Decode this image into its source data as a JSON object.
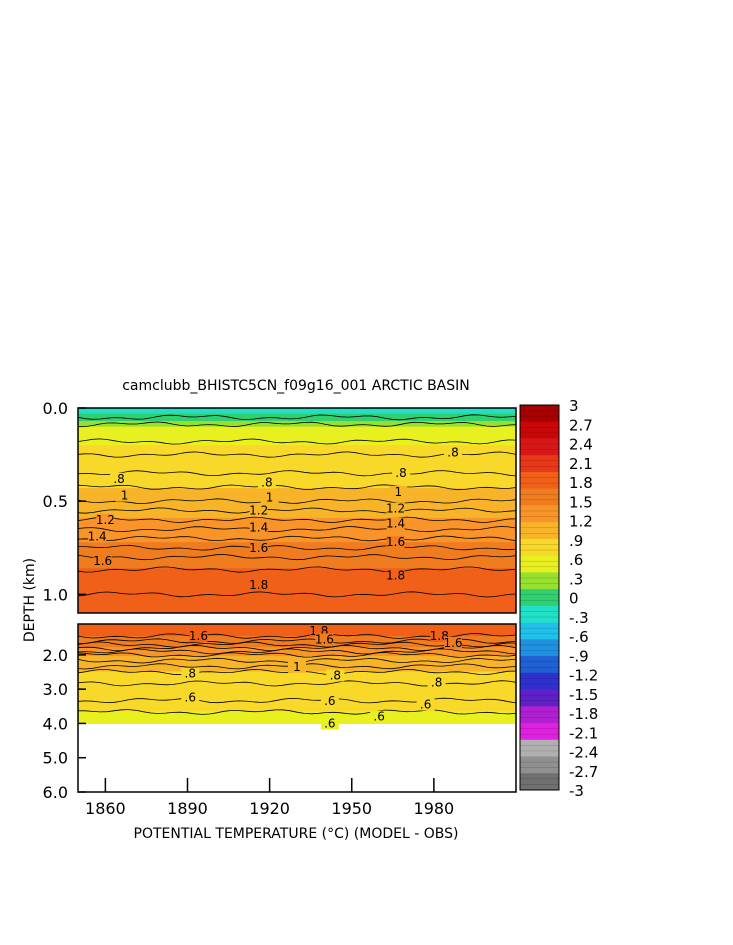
{
  "chart_data": {
    "type": "heatmap",
    "title": "camclubb_BHISTC5CN_f09g16_001 ARCTIC BASIN",
    "xlabel": "POTENTIAL TEMPERATURE (°C) (MODEL - OBS)",
    "ylabel": "DEPTH (km)",
    "x_ticks": [
      "1860",
      "1890",
      "1920",
      "1950",
      "1980"
    ],
    "x_tick_values": [
      1860,
      1890,
      1920,
      1950,
      1980
    ],
    "xlim": [
      1850,
      2010
    ],
    "upper_panel": {
      "ylim": [
        0.0,
        1.1
      ],
      "y_ticks": [
        "0.0",
        "0.5",
        "1.0"
      ],
      "y_tick_values": [
        0.0,
        0.5,
        1.0
      ]
    },
    "lower_panel": {
      "ylim": [
        1.1,
        6.0
      ],
      "y_ticks": [
        "2.0",
        "3.0",
        "4.0",
        "5.0",
        "6.0"
      ],
      "y_tick_values": [
        2.0,
        3.0,
        4.0,
        5.0,
        6.0
      ],
      "data_bottom": 4.0
    },
    "colorbar": {
      "labels": [
        "3",
        "2.7",
        "2.4",
        "2.1",
        "1.8",
        "1.5",
        "1.2",
        ".9",
        ".6",
        ".3",
        "0",
        "-.3",
        "-.6",
        "-.9",
        "-1.2",
        "-1.5",
        "-1.8",
        "-2.1",
        "-2.4",
        "-2.7",
        "-3"
      ],
      "values": [
        3,
        2.7,
        2.4,
        2.1,
        1.8,
        1.5,
        1.2,
        0.9,
        0.6,
        0.3,
        0,
        -0.3,
        -0.6,
        -0.9,
        -1.2,
        -1.5,
        -1.8,
        -2.1,
        -2.4,
        -2.7,
        -3
      ],
      "colors": [
        "#a80000",
        "#c80808",
        "#d81818",
        "#e83818",
        "#f06018",
        "#f07c20",
        "#f89428",
        "#f8b428",
        "#f8d828",
        "#e8f020",
        "#98e030",
        "#30d070",
        "#20e0c8",
        "#20c0e8",
        "#2090e0",
        "#2060d0",
        "#3030d0",
        "#6020c8",
        "#b020d0",
        "#e020e0",
        "#b0b0b0",
        "#909090",
        "#707070"
      ]
    },
    "profile": [
      {
        "depth": 0.0,
        "value": -0.3
      },
      {
        "depth": 0.05,
        "value": 0.0
      },
      {
        "depth": 0.1,
        "value": 0.4
      },
      {
        "depth": 0.2,
        "value": 0.65
      },
      {
        "depth": 0.35,
        "value": 0.8
      },
      {
        "depth": 0.5,
        "value": 1.0
      },
      {
        "depth": 0.6,
        "value": 1.2
      },
      {
        "depth": 0.7,
        "value": 1.4
      },
      {
        "depth": 0.8,
        "value": 1.6
      },
      {
        "depth": 0.9,
        "value": 1.75
      },
      {
        "depth": 1.1,
        "value": 1.85
      },
      {
        "depth": 1.3,
        "value": 1.8
      },
      {
        "depth": 1.6,
        "value": 1.6
      },
      {
        "depth": 2.0,
        "value": 1.2
      },
      {
        "depth": 2.5,
        "value": 0.9
      },
      {
        "depth": 3.0,
        "value": 0.75
      },
      {
        "depth": 4.0,
        "value": 0.6
      }
    ],
    "contour_labels": [
      {
        "text": ".8",
        "x": 1865,
        "depth": 0.38
      },
      {
        "text": ".8",
        "x": 1919,
        "depth": 0.4
      },
      {
        "text": ".8",
        "x": 1968,
        "depth": 0.35
      },
      {
        "text": ".8",
        "x": 1987,
        "depth": 0.24
      },
      {
        "text": "1",
        "x": 1867,
        "depth": 0.47
      },
      {
        "text": "1",
        "x": 1920,
        "depth": 0.48
      },
      {
        "text": "1",
        "x": 1967,
        "depth": 0.45
      },
      {
        "text": "1.2",
        "x": 1860,
        "depth": 0.6
      },
      {
        "text": "1.2",
        "x": 1916,
        "depth": 0.55
      },
      {
        "text": "1.2",
        "x": 1966,
        "depth": 0.54
      },
      {
        "text": "1.4",
        "x": 1857,
        "depth": 0.69
      },
      {
        "text": "1.4",
        "x": 1916,
        "depth": 0.64
      },
      {
        "text": "1.4",
        "x": 1966,
        "depth": 0.62
      },
      {
        "text": "1.6",
        "x": 1859,
        "depth": 0.82
      },
      {
        "text": "1.6",
        "x": 1916,
        "depth": 0.75
      },
      {
        "text": "1.6",
        "x": 1966,
        "depth": 0.72
      },
      {
        "text": "1.8",
        "x": 1916,
        "depth": 0.95
      },
      {
        "text": "1.8",
        "x": 1966,
        "depth": 0.9
      },
      {
        "text": "1.6",
        "x": 1894,
        "depth": 1.45
      },
      {
        "text": "1.8",
        "x": 1938,
        "depth": 1.3
      },
      {
        "text": "1.6",
        "x": 1940,
        "depth": 1.55
      },
      {
        "text": "1.8",
        "x": 1982,
        "depth": 1.45
      },
      {
        "text": "1.6",
        "x": 1987,
        "depth": 1.65
      },
      {
        "text": "1",
        "x": 1930,
        "depth": 2.35
      },
      {
        "text": ".8",
        "x": 1891,
        "depth": 2.55
      },
      {
        "text": ".8",
        "x": 1944,
        "depth": 2.6
      },
      {
        "text": ".8",
        "x": 1981,
        "depth": 2.8
      },
      {
        "text": ".6",
        "x": 1891,
        "depth": 3.25
      },
      {
        "text": ".6",
        "x": 1942,
        "depth": 3.35
      },
      {
        "text": ".6",
        "x": 1977,
        "depth": 3.45
      },
      {
        "text": ".6",
        "x": 1960,
        "depth": 3.8
      },
      {
        "text": ".6",
        "x": 1942,
        "depth": 4.0
      }
    ]
  }
}
